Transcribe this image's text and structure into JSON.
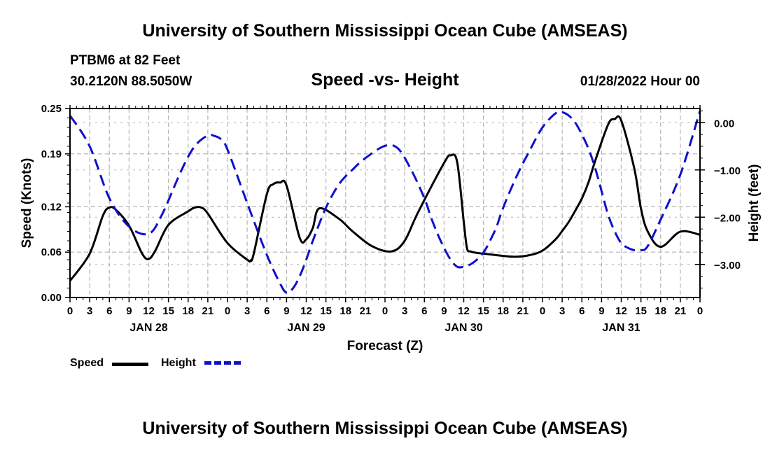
{
  "header": {
    "title": "University of Southern Mississippi Ocean Cube (AMSEAS)",
    "station": "PTBM6 at 82 Feet",
    "coords": "30.2120N  88.5050W",
    "subtitle": "Speed -vs- Height",
    "datetime": "01/28/2022 Hour 00"
  },
  "footer": {
    "title": "University of Southern Mississippi Ocean Cube (AMSEAS)"
  },
  "legend": {
    "speed": "Speed",
    "height": "Height"
  },
  "colors": {
    "speed": "#000000",
    "height": "#1010cc",
    "grid": "#b4b4b4"
  },
  "chart_data": {
    "type": "line",
    "xlabel": "Forecast (Z)",
    "ylabel": "Speed (Knots)",
    "y2label": "Height (feet)",
    "xlim": [
      0,
      96
    ],
    "ylim": [
      0,
      0.25
    ],
    "y2lim": [
      -3.7,
      0.3
    ],
    "yticks": [
      0.0,
      0.06,
      0.12,
      0.19,
      0.25
    ],
    "ytick_labels": [
      "0.00",
      "0.06",
      "0.12",
      "0.19",
      "0.25"
    ],
    "y2ticks": [
      0,
      -1,
      -2,
      -3
    ],
    "y2tick_labels": [
      "0.00",
      "−1.00",
      "−2.00",
      "−3.00"
    ],
    "xtick_labels": [
      "0",
      "3",
      "6",
      "9",
      "12",
      "15",
      "18",
      "21",
      "0",
      "3",
      "6",
      "9",
      "12",
      "15",
      "18",
      "21",
      "0",
      "3",
      "6",
      "9",
      "12",
      "15",
      "18",
      "21",
      "0",
      "3",
      "6",
      "9",
      "12",
      "15",
      "18",
      "21",
      "0"
    ],
    "date_labels": [
      {
        "label": "JAN 28",
        "hour": 12
      },
      {
        "label": "JAN 29",
        "hour": 36
      },
      {
        "label": "JAN 30",
        "hour": 60
      },
      {
        "label": "JAN 31",
        "hour": 84
      }
    ],
    "grid": true,
    "series": [
      {
        "name": "Speed",
        "axis": "left",
        "style": "solid",
        "x": [
          0,
          3,
          5,
          6,
          7,
          9,
          11,
          12,
          13,
          15,
          18,
          19,
          20,
          21,
          24,
          27,
          27.5,
          28,
          30,
          31,
          32,
          33,
          35,
          36,
          37,
          38,
          41,
          43,
          46,
          49,
          51,
          53,
          57,
          58,
          59,
          60,
          60.5,
          61,
          62,
          63,
          64,
          66,
          68,
          70,
          72,
          74,
          75,
          76,
          77,
          78,
          79,
          80,
          82,
          83,
          84,
          86,
          87,
          88,
          90,
          93,
          96
        ],
        "y": [
          0.022,
          0.058,
          0.108,
          0.119,
          0.116,
          0.095,
          0.058,
          0.051,
          0.062,
          0.096,
          0.114,
          0.119,
          0.119,
          0.111,
          0.072,
          0.05,
          0.049,
          0.058,
          0.137,
          0.15,
          0.152,
          0.148,
          0.079,
          0.077,
          0.092,
          0.118,
          0.104,
          0.088,
          0.068,
          0.061,
          0.075,
          0.112,
          0.178,
          0.188,
          0.179,
          0.1,
          0.065,
          0.061,
          0.059,
          0.058,
          0.057,
          0.055,
          0.054,
          0.056,
          0.062,
          0.077,
          0.088,
          0.1,
          0.115,
          0.131,
          0.152,
          0.18,
          0.229,
          0.236,
          0.234,
          0.17,
          0.118,
          0.088,
          0.067,
          0.087,
          0.083
        ]
      },
      {
        "name": "Height",
        "axis": "right",
        "style": "dashed",
        "x": [
          0,
          3,
          6,
          9,
          12,
          14,
          17,
          19,
          21,
          22,
          23,
          24,
          27,
          30,
          32,
          33,
          34,
          35,
          36,
          37,
          39,
          41,
          43,
          45,
          48,
          50,
          52,
          54,
          55,
          56,
          57,
          58,
          59,
          60,
          61,
          62,
          63,
          64,
          65,
          66,
          68,
          70,
          72,
          74,
          75,
          76,
          77,
          78,
          79,
          80,
          81,
          82,
          83,
          84,
          85,
          86,
          87,
          88,
          90,
          93,
          96
        ],
        "y": [
          0.15,
          -0.5,
          -1.6,
          -2.2,
          -2.35,
          -1.95,
          -1.0,
          -0.5,
          -0.27,
          -0.28,
          -0.35,
          -0.57,
          -1.7,
          -2.8,
          -3.4,
          -3.6,
          -3.5,
          -3.25,
          -2.9,
          -2.5,
          -1.8,
          -1.3,
          -1.0,
          -0.75,
          -0.49,
          -0.55,
          -1.0,
          -1.6,
          -2.0,
          -2.35,
          -2.65,
          -2.9,
          -3.05,
          -3.05,
          -3.0,
          -2.9,
          -2.75,
          -2.5,
          -2.2,
          -1.8,
          -1.15,
          -0.6,
          -0.1,
          0.2,
          0.22,
          0.15,
          0.0,
          -0.25,
          -0.55,
          -0.95,
          -1.45,
          -1.95,
          -2.3,
          -2.55,
          -2.65,
          -2.7,
          -2.7,
          -2.62,
          -2.05,
          -1.1,
          0.25
        ]
      }
    ]
  }
}
